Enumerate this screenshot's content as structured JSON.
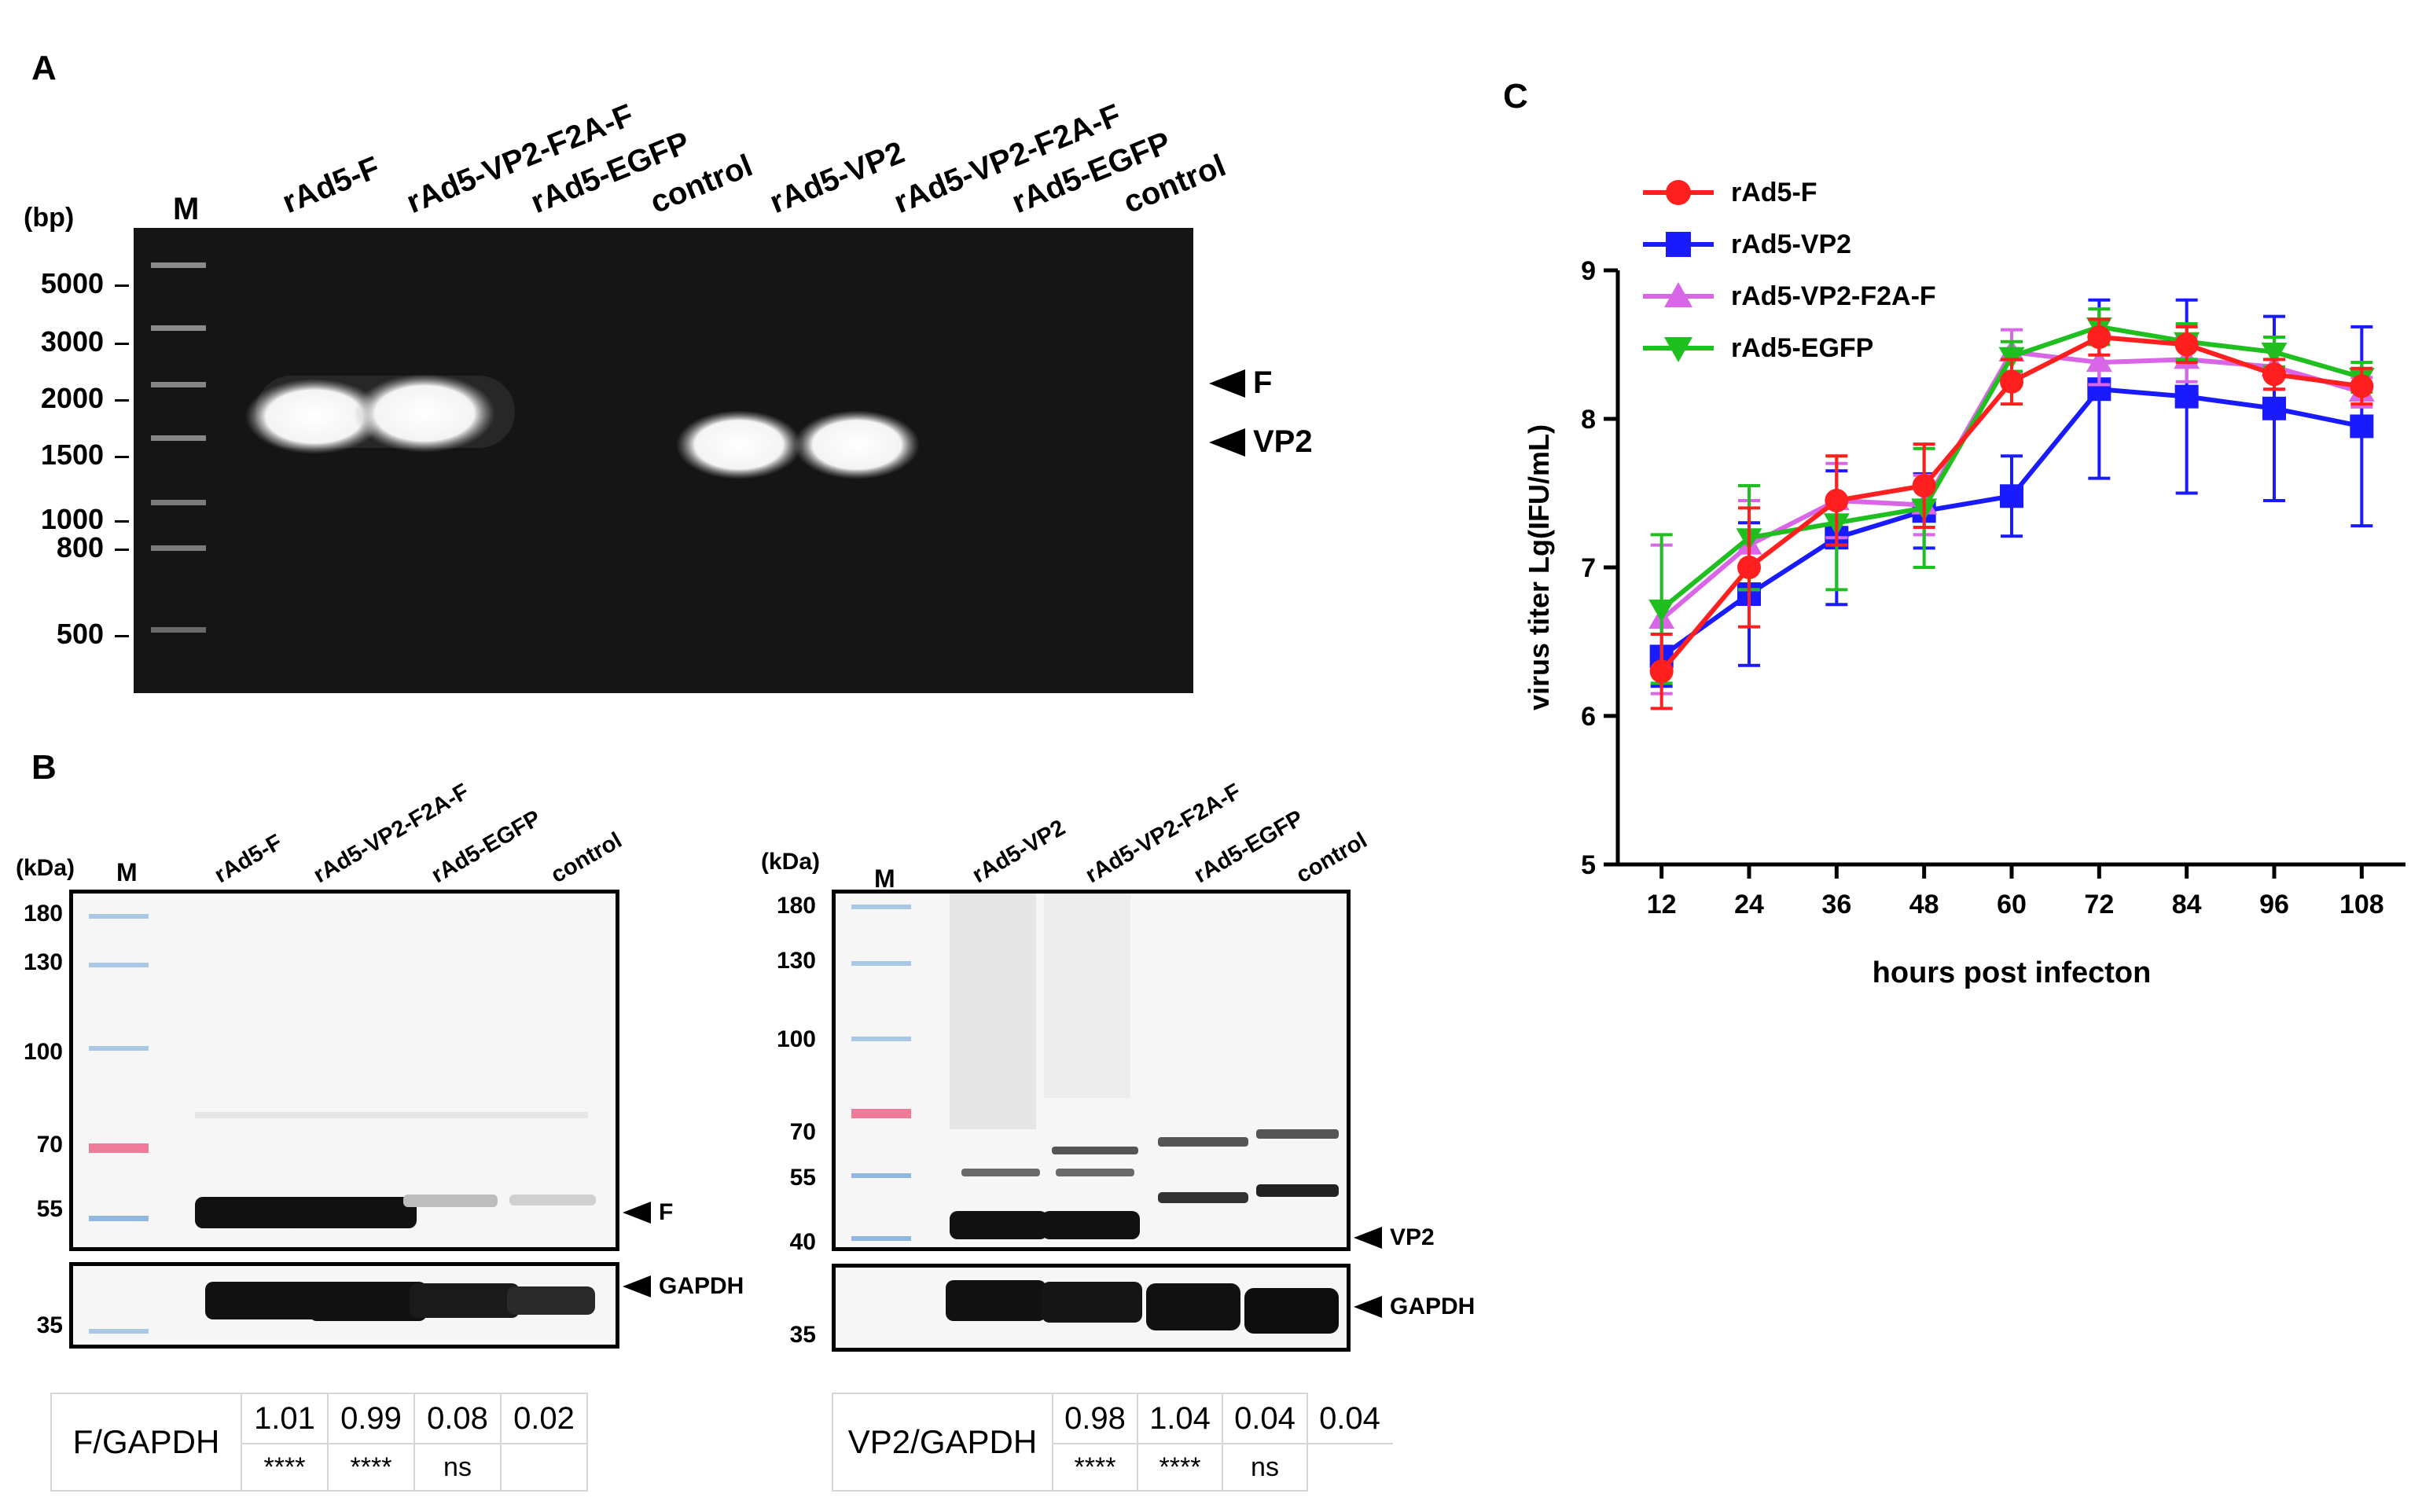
{
  "panels": {
    "a": "A",
    "b": "B",
    "c": "C"
  },
  "gel": {
    "unit": "(bp)",
    "marker_label": "M",
    "lanes": [
      "rAd5-F",
      "rAd5-VP2-F2A-F",
      "rAd5-EGFP",
      "control",
      "rAd5-VP2",
      "rAd5-VP2-F2A-F",
      "rAd5-EGFP",
      "control"
    ],
    "ladder": [
      "5000",
      "3000",
      "2000",
      "1500",
      "1000",
      "800",
      "500"
    ],
    "arrows": [
      "F",
      "VP2"
    ]
  },
  "blot_f": {
    "unit": "(kDa)",
    "marker_label": "M",
    "lanes": [
      "rAd5-F",
      "rAd5-VP2-F2A-F",
      "rAd5-EGFP",
      "control"
    ],
    "kda": [
      "180",
      "130",
      "100",
      "70",
      "55",
      "35"
    ],
    "arrows": [
      "F",
      "GAPDH"
    ],
    "ratio_label": "F/GAPDH",
    "ratios": [
      "1.01",
      "0.99",
      "0.08",
      "0.02"
    ],
    "significance": [
      "****",
      "****",
      "ns",
      ""
    ]
  },
  "blot_vp2": {
    "unit": "(kDa)",
    "marker_label": "M",
    "lanes": [
      "rAd5-VP2",
      "rAd5-VP2-F2A-F",
      "rAd5-EGFP",
      "control"
    ],
    "kda": [
      "180",
      "130",
      "100",
      "70",
      "55",
      "40",
      "35"
    ],
    "arrows": [
      "VP2",
      "GAPDH"
    ],
    "ratio_label": "VP2/GAPDH",
    "ratios": [
      "0.98",
      "1.04",
      "0.04",
      "0.04"
    ],
    "significance": [
      "****",
      "****",
      "ns",
      ""
    ]
  },
  "chart_data": {
    "type": "line",
    "title": "",
    "xlabel": "hours post infecton",
    "ylabel": "virus titer Lg(IFU/mL)",
    "x": [
      12,
      24,
      36,
      48,
      60,
      72,
      84,
      96,
      108
    ],
    "xticks": [
      "12",
      "24",
      "36",
      "48",
      "60",
      "72",
      "84",
      "96",
      "108"
    ],
    "yticks": [
      "5",
      "6",
      "7",
      "8",
      "9"
    ],
    "ylim": [
      5,
      9
    ],
    "legend_position": "top-left",
    "series": [
      {
        "name": "rAd5-F",
        "color": "#ff1f1f",
        "marker": "circle",
        "values": [
          6.3,
          7.0,
          7.45,
          7.55,
          8.25,
          8.55,
          8.5,
          8.3,
          8.22
        ],
        "errors": [
          0.25,
          0.4,
          0.3,
          0.28,
          0.15,
          0.12,
          0.12,
          0.1,
          0.12
        ]
      },
      {
        "name": "rAd5-VP2",
        "color": "#1a1aff",
        "marker": "square",
        "values": [
          6.4,
          6.82,
          7.2,
          7.38,
          7.48,
          8.2,
          8.15,
          8.07,
          7.95
        ],
        "errors": [
          0.2,
          0.48,
          0.45,
          0.25,
          0.27,
          0.6,
          0.65,
          0.62,
          0.67
        ]
      },
      {
        "name": "rAd5-VP2-F2A-F",
        "color": "#d966e6",
        "marker": "triangle-up",
        "values": [
          6.65,
          7.15,
          7.45,
          7.42,
          8.45,
          8.38,
          8.4,
          8.35,
          8.18
        ],
        "errors": [
          0.5,
          0.3,
          0.25,
          0.2,
          0.15,
          0.15,
          0.15,
          0.15,
          0.1
        ]
      },
      {
        "name": "rAd5-EGFP",
        "color": "#1fbf1f",
        "marker": "triangle-down",
        "values": [
          6.72,
          7.2,
          7.3,
          7.4,
          8.42,
          8.62,
          8.52,
          8.45,
          8.28
        ],
        "errors": [
          0.5,
          0.35,
          0.45,
          0.4,
          0.1,
          0.12,
          0.12,
          0.1,
          0.1
        ]
      }
    ]
  }
}
